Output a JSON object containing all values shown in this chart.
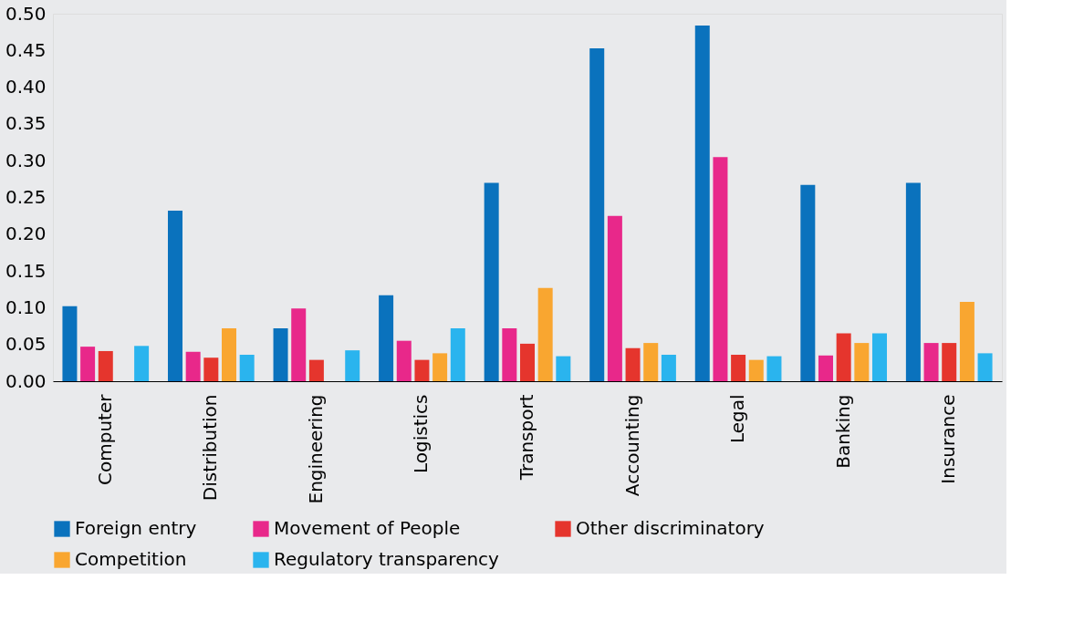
{
  "chart_data": {
    "type": "bar",
    "categories": [
      "Computer",
      "Distribution",
      "Engineering",
      "Logistics",
      "Transport",
      "Accounting",
      "Legal",
      "Banking",
      "Insurance"
    ],
    "series": [
      {
        "name": "Foreign entry",
        "color": "#0a72bd",
        "values": [
          0.102,
          0.232,
          0.072,
          0.117,
          0.27,
          0.453,
          0.484,
          0.267,
          0.27
        ]
      },
      {
        "name": "Movement of People",
        "color": "#e8288a",
        "values": [
          0.047,
          0.04,
          0.099,
          0.055,
          0.072,
          0.225,
          0.305,
          0.035,
          0.052
        ]
      },
      {
        "name": "Other discriminatory",
        "color": "#e5352d",
        "values": [
          0.041,
          0.032,
          0.029,
          0.029,
          0.051,
          0.045,
          0.036,
          0.065,
          0.052
        ]
      },
      {
        "name": "Competition",
        "color": "#f9a630",
        "values": [
          null,
          0.072,
          null,
          0.038,
          0.127,
          0.052,
          0.029,
          0.052,
          0.108
        ]
      },
      {
        "name": "Regulatory transparency",
        "color": "#2ab4ee",
        "values": [
          0.048,
          0.036,
          0.042,
          0.072,
          0.034,
          0.036,
          0.034,
          0.065,
          0.038
        ]
      }
    ],
    "ylim": [
      0,
      0.5
    ],
    "yticks": [
      {
        "value": 0,
        "label": "0.00"
      },
      {
        "value": 0.05,
        "label": "0.05"
      },
      {
        "value": 0.1,
        "label": "0.10"
      },
      {
        "value": 0.15,
        "label": "0.15"
      },
      {
        "value": 0.2,
        "label": "0.20"
      },
      {
        "value": 0.25,
        "label": "0.25"
      },
      {
        "value": 0.3,
        "label": "0.30"
      },
      {
        "value": 0.35,
        "label": "0.35"
      },
      {
        "value": 0.4,
        "label": "0.40"
      },
      {
        "value": 0.45,
        "label": "0.45"
      },
      {
        "value": 0.5,
        "label": "0.50"
      }
    ],
    "grid": false,
    "legend": "bottom"
  }
}
